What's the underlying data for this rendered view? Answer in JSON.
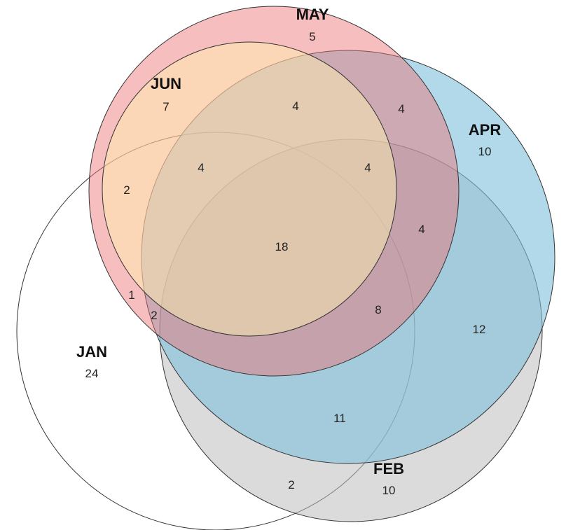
{
  "sets": [
    {
      "label": "MAY",
      "count": 5
    },
    {
      "label": "JUN",
      "count": 7
    },
    {
      "label": "APR",
      "count": 10
    },
    {
      "label": "JAN",
      "count": 24
    },
    {
      "label": "FEB",
      "count": 10
    }
  ],
  "regions": [
    4,
    4,
    4,
    4,
    2,
    4,
    18,
    1,
    2,
    8,
    12,
    11,
    2
  ]
}
